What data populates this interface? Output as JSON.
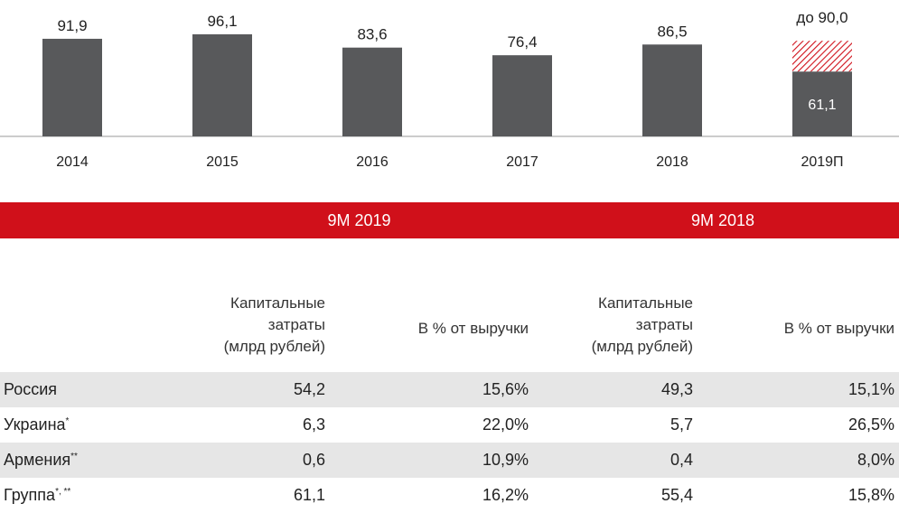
{
  "chart_data": {
    "type": "bar",
    "categories": [
      "2014",
      "2015",
      "2016",
      "2017",
      "2018",
      "2019П"
    ],
    "values": [
      91.9,
      96.1,
      83.6,
      76.4,
      86.5,
      61.1
    ],
    "value_labels": [
      "91,9",
      "96,1",
      "83,6",
      "76,4",
      "86,5",
      "61,1"
    ],
    "forecast": {
      "category": "2019П",
      "actual": 61.1,
      "target": 90.0,
      "label": "до 90,0"
    },
    "ylim": [
      0,
      100
    ],
    "grid": false,
    "bar_color": "#58595b",
    "forecast_hatch_color": "#d0101a"
  },
  "table": {
    "groups": [
      "9M 2019",
      "9M 2018"
    ],
    "col_headers": {
      "capex": [
        "Капитальные",
        "затраты",
        "(млрд рублей)"
      ],
      "pct": "В % от выручки"
    },
    "rows": [
      {
        "name": "Россия",
        "sup": "",
        "v1": "54,2",
        "v2": "15,6%",
        "v3": "49,3",
        "v4": "15,1%"
      },
      {
        "name": "Украина",
        "sup": "*",
        "v1": "6,3",
        "v2": "22,0%",
        "v3": "5,7",
        "v4": "26,5%"
      },
      {
        "name": "Армения",
        "sup": "**",
        "v1": "0,6",
        "v2": "10,9%",
        "v3": "0,4",
        "v4": "8,0%"
      },
      {
        "name": "Группа",
        "sup": "*, **",
        "v1": "61,1",
        "v2": "16,2%",
        "v3": "55,4",
        "v4": "15,8%"
      }
    ]
  },
  "colors": {
    "accent": "#d0101a",
    "row_shade": "#e6e6e6",
    "bar": "#58595b"
  }
}
